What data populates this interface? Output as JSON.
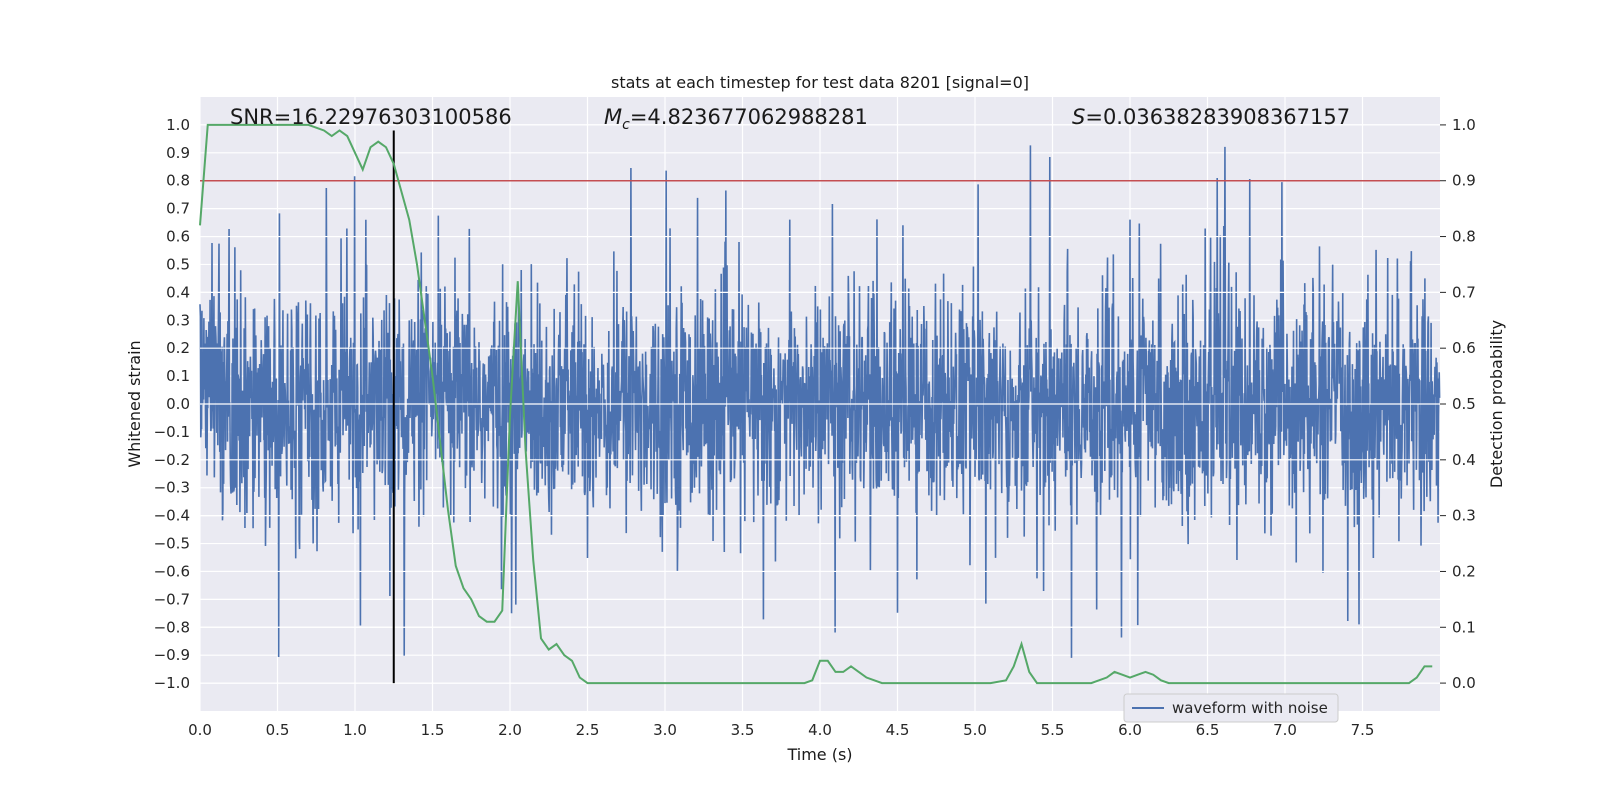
{
  "chart_data": {
    "type": "line",
    "title": "stats at each timestep for test data 8201 [signal=0]",
    "xlabel": "Time (s)",
    "ylabel": "Whitened strain",
    "ylabel_right": "Detection probability",
    "xlim": [
      0.0,
      8.0
    ],
    "ylim": [
      -1.1,
      1.1
    ],
    "ylim_right": [
      -0.05,
      1.05
    ],
    "x_ticks": [
      "0.0",
      "0.5",
      "1.0",
      "1.5",
      "2.0",
      "2.5",
      "3.0",
      "3.5",
      "4.0",
      "4.5",
      "5.0",
      "5.5",
      "6.0",
      "6.5",
      "7.0",
      "7.5"
    ],
    "y_ticks": [
      "1.0",
      "0.9",
      "0.8",
      "0.7",
      "0.6",
      "0.5",
      "0.4",
      "0.3",
      "0.2",
      "0.1",
      "0.0",
      "-0.1",
      "-0.2",
      "-0.3",
      "-0.4",
      "-0.5",
      "-0.6",
      "-0.7",
      "-0.8",
      "-0.9",
      "-1.0"
    ],
    "y2_ticks": [
      "1.0",
      "0.9",
      "0.8",
      "0.7",
      "0.6",
      "0.5",
      "0.4",
      "0.3",
      "0.2",
      "0.1",
      "0.0"
    ],
    "annotations": {
      "snr": "SNR=16.22976303100586",
      "mc_symbol": "M",
      "mc_sub": "c",
      "mc_value": "=4.823677062988281",
      "s_symbol": "S",
      "s_value": "=0.03638283908367157"
    },
    "legend": {
      "label": "waveform with noise",
      "position": "lower-right"
    },
    "grid": true,
    "threshold_right": 0.9,
    "marker_time": 1.25,
    "marker_y_range": [
      -1.0,
      0.98
    ],
    "series": [
      {
        "name": "waveform with noise",
        "axis": "left",
        "style": "noise",
        "color": "#4c72b0",
        "sample_rate": 400,
        "duration": 8.0,
        "typical_upper": 0.45,
        "typical_lower": -0.45
      },
      {
        "name": "detection probability",
        "axis": "right",
        "color": "#55a868",
        "x": [
          0.0,
          0.05,
          0.1,
          0.15,
          0.2,
          0.3,
          0.4,
          0.5,
          0.6,
          0.7,
          0.8,
          0.85,
          0.9,
          0.95,
          1.0,
          1.05,
          1.1,
          1.15,
          1.2,
          1.25,
          1.3,
          1.35,
          1.4,
          1.45,
          1.5,
          1.55,
          1.6,
          1.65,
          1.7,
          1.75,
          1.8,
          1.85,
          1.9,
          1.95,
          2.0,
          2.05,
          2.1,
          2.15,
          2.2,
          2.25,
          2.3,
          2.35,
          2.4,
          2.45,
          2.5,
          3.0,
          3.5,
          3.9,
          3.95,
          4.0,
          4.05,
          4.1,
          4.15,
          4.2,
          4.25,
          4.3,
          4.35,
          4.4,
          4.5,
          4.8,
          5.0,
          5.1,
          5.2,
          5.25,
          5.3,
          5.35,
          5.4,
          5.5,
          5.75,
          5.8,
          5.85,
          5.9,
          5.95,
          6.0,
          6.05,
          6.1,
          6.15,
          6.2,
          6.25,
          6.3,
          6.5,
          7.0,
          7.5,
          7.6,
          7.7,
          7.8,
          7.85,
          7.9,
          7.95
        ],
        "y": [
          0.82,
          1.0,
          1.0,
          1.0,
          1.0,
          1.0,
          1.0,
          1.0,
          1.0,
          1.0,
          0.99,
          0.98,
          0.99,
          0.98,
          0.95,
          0.92,
          0.96,
          0.97,
          0.96,
          0.93,
          0.88,
          0.83,
          0.75,
          0.65,
          0.55,
          0.43,
          0.31,
          0.21,
          0.17,
          0.15,
          0.12,
          0.11,
          0.11,
          0.13,
          0.48,
          0.72,
          0.42,
          0.22,
          0.08,
          0.06,
          0.07,
          0.05,
          0.04,
          0.01,
          0.0,
          0.0,
          0.0,
          0.0,
          0.005,
          0.04,
          0.04,
          0.02,
          0.02,
          0.03,
          0.02,
          0.01,
          0.005,
          0.0,
          0.0,
          0.0,
          0.0,
          0.0,
          0.005,
          0.03,
          0.07,
          0.02,
          0.0,
          0.0,
          0.0,
          0.005,
          0.01,
          0.02,
          0.015,
          0.01,
          0.015,
          0.02,
          0.015,
          0.005,
          0.0,
          0.0,
          0.0,
          0.0,
          0.0,
          0.0,
          0.0,
          0.0,
          0.01,
          0.03,
          0.03
        ]
      }
    ],
    "colors": {
      "background": "#eaeaf2",
      "grid": "#ffffff",
      "threshold": "#c44e52",
      "marker": "#000000",
      "detection": "#55a868",
      "waveform": "#4c72b0"
    }
  }
}
